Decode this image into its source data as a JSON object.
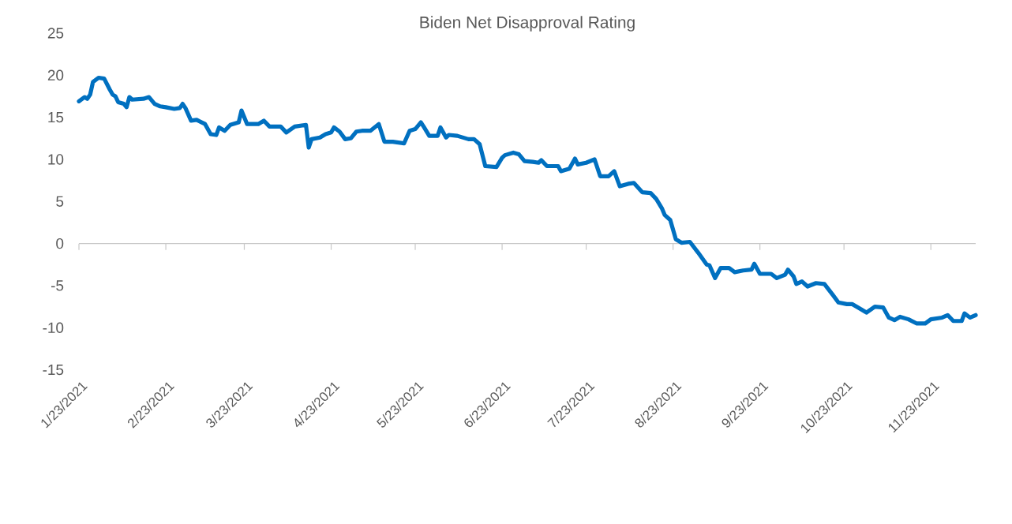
{
  "chart_data": {
    "type": "line",
    "title": "Biden Net Disapproval Rating",
    "x": [
      "2021-01-23",
      "2021-01-25",
      "2021-01-26",
      "2021-01-27",
      "2021-01-28",
      "2021-01-30",
      "2021-02-01",
      "2021-02-03",
      "2021-02-04",
      "2021-02-05",
      "2021-02-06",
      "2021-02-08",
      "2021-02-09",
      "2021-02-10",
      "2021-02-11",
      "2021-02-15",
      "2021-02-17",
      "2021-02-19",
      "2021-02-21",
      "2021-02-23",
      "2021-02-26",
      "2021-02-28",
      "2021-03-01",
      "2021-03-02",
      "2021-03-04",
      "2021-03-06",
      "2021-03-09",
      "2021-03-11",
      "2021-03-13",
      "2021-03-14",
      "2021-03-16",
      "2021-03-18",
      "2021-03-21",
      "2021-03-22",
      "2021-03-24",
      "2021-03-28",
      "2021-03-30",
      "2021-04-01",
      "2021-04-05",
      "2021-04-07",
      "2021-04-10",
      "2021-04-14",
      "2021-04-15",
      "2021-04-16",
      "2021-04-19",
      "2021-04-21",
      "2021-04-23",
      "2021-04-24",
      "2021-04-26",
      "2021-04-28",
      "2021-04-30",
      "2021-05-02",
      "2021-05-04",
      "2021-05-07",
      "2021-05-10",
      "2021-05-12",
      "2021-05-15",
      "2021-05-19",
      "2021-05-21",
      "2021-05-23",
      "2021-05-25",
      "2021-05-26",
      "2021-05-28",
      "2021-05-31",
      "2021-06-01",
      "2021-06-03",
      "2021-06-04",
      "2021-06-07",
      "2021-06-11",
      "2021-06-13",
      "2021-06-15",
      "2021-06-17",
      "2021-06-21",
      "2021-06-23",
      "2021-06-24",
      "2021-06-27",
      "2021-06-29",
      "2021-07-01",
      "2021-07-04",
      "2021-07-06",
      "2021-07-07",
      "2021-07-09",
      "2021-07-13",
      "2021-07-14",
      "2021-07-17",
      "2021-07-19",
      "2021-07-20",
      "2021-07-23",
      "2021-07-26",
      "2021-07-28",
      "2021-07-31",
      "2021-08-02",
      "2021-08-04",
      "2021-08-07",
      "2021-08-09",
      "2021-08-12",
      "2021-08-15",
      "2021-08-17",
      "2021-08-19",
      "2021-08-20",
      "2021-08-22",
      "2021-08-24",
      "2021-08-26",
      "2021-08-29",
      "2021-09-01",
      "2021-09-04",
      "2021-09-05",
      "2021-09-07",
      "2021-09-09",
      "2021-09-12",
      "2021-09-14",
      "2021-09-17",
      "2021-09-20",
      "2021-09-21",
      "2021-09-23",
      "2021-09-27",
      "2021-09-29",
      "2021-10-02",
      "2021-10-03",
      "2021-10-05",
      "2021-10-06",
      "2021-10-08",
      "2021-10-10",
      "2021-10-13",
      "2021-10-16",
      "2021-10-19",
      "2021-10-21",
      "2021-10-24",
      "2021-10-26",
      "2021-10-29",
      "2021-10-31",
      "2021-11-03",
      "2021-11-06",
      "2021-11-08",
      "2021-11-10",
      "2021-11-12",
      "2021-11-15",
      "2021-11-18",
      "2021-11-21",
      "2021-11-23",
      "2021-11-27",
      "2021-11-29",
      "2021-12-01",
      "2021-12-04",
      "2021-12-05",
      "2021-12-07",
      "2021-12-09"
    ],
    "series": [
      {
        "color": "#0070c0",
        "values": [
          16.9,
          17.4,
          17.2,
          17.7,
          19.2,
          19.7,
          19.6,
          18.3,
          17.7,
          17.5,
          16.8,
          16.6,
          16.2,
          17.4,
          17.1,
          17.2,
          17.4,
          16.6,
          16.3,
          16.2,
          16.0,
          16.1,
          16.6,
          16.1,
          14.6,
          14.7,
          14.2,
          13.0,
          12.9,
          13.8,
          13.4,
          14.1,
          14.4,
          15.8,
          14.2,
          14.2,
          14.6,
          13.9,
          13.9,
          13.2,
          13.9,
          14.1,
          11.4,
          12.4,
          12.6,
          13.0,
          13.2,
          13.8,
          13.3,
          12.4,
          12.5,
          13.3,
          13.4,
          13.4,
          14.2,
          12.1,
          12.1,
          11.9,
          13.4,
          13.6,
          14.4,
          13.9,
          12.8,
          12.8,
          13.8,
          12.6,
          12.9,
          12.8,
          12.4,
          12.4,
          11.8,
          9.2,
          9.1,
          10.2,
          10.5,
          10.8,
          10.6,
          9.8,
          9.7,
          9.6,
          9.9,
          9.2,
          9.2,
          8.6,
          8.9,
          10.1,
          9.4,
          9.6,
          10.0,
          8.0,
          8.0,
          8.6,
          6.8,
          7.1,
          7.2,
          6.1,
          6.0,
          5.3,
          4.2,
          3.4,
          2.8,
          0.5,
          0.1,
          0.2,
          -1.1,
          -2.5,
          -2.6,
          -4.1,
          -2.9,
          -2.9,
          -3.4,
          -3.2,
          -3.1,
          -2.4,
          -3.6,
          -3.6,
          -4.1,
          -3.7,
          -3.1,
          -3.9,
          -4.8,
          -4.5,
          -5.1,
          -4.7,
          -4.8,
          -6.1,
          -7.0,
          -7.2,
          -7.2,
          -7.8,
          -8.2,
          -7.5,
          -7.6,
          -8.8,
          -9.1,
          -8.7,
          -9.0,
          -9.5,
          -9.5,
          -9.0,
          -8.8,
          -8.5,
          -9.2,
          -9.2,
          -8.3,
          -8.8,
          -8.5
        ]
      }
    ],
    "xlim": [
      "2021-01-23",
      "2021-12-09"
    ],
    "xticks": [
      {
        "value": "2021-01-23",
        "label": "1/23/2021"
      },
      {
        "value": "2021-02-23",
        "label": "2/23/2021"
      },
      {
        "value": "2021-03-23",
        "label": "3/23/2021"
      },
      {
        "value": "2021-04-23",
        "label": "4/23/2021"
      },
      {
        "value": "2021-05-23",
        "label": "5/23/2021"
      },
      {
        "value": "2021-06-23",
        "label": "6/23/2021"
      },
      {
        "value": "2021-07-23",
        "label": "7/23/2021"
      },
      {
        "value": "2021-08-23",
        "label": "8/23/2021"
      },
      {
        "value": "2021-09-23",
        "label": "9/23/2021"
      },
      {
        "value": "2021-10-23",
        "label": "10/23/2021"
      },
      {
        "value": "2021-11-23",
        "label": "11/23/2021"
      }
    ],
    "ylim": [
      -15,
      25
    ],
    "yticks": [
      -15,
      -10,
      -5,
      0,
      5,
      10,
      15,
      20,
      25
    ],
    "ref_lines": [
      {
        "axis": "y",
        "value": 0,
        "color": "#c8c8c8"
      }
    ],
    "grid": false,
    "legend": false,
    "marker": "none",
    "line_style": "solid"
  }
}
